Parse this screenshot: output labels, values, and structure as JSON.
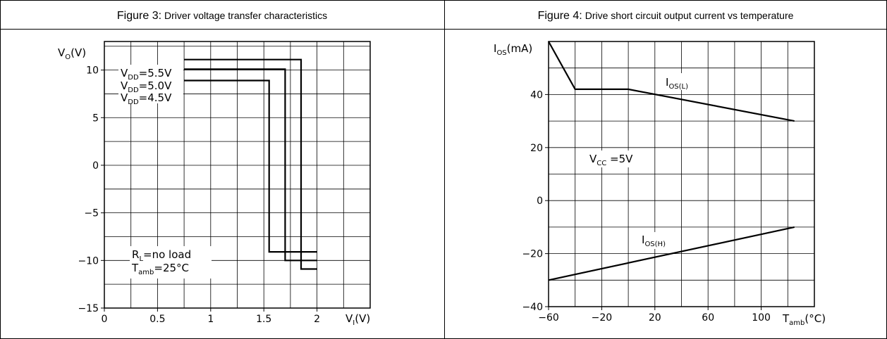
{
  "charts": [
    {
      "title_prefix": "Figure 3:",
      "title_rest": "Driver voltage transfer characteristics",
      "y_axis": {
        "main": "V",
        "sub": "O",
        "unit": "(V)"
      },
      "x_axis": {
        "main": "V",
        "sub": "I",
        "unit": "(V)"
      },
      "x_ticks": [
        "0",
        "0.5",
        "1",
        "1.5",
        "2"
      ],
      "y_ticks": [
        "10",
        "5",
        "0",
        "−5",
        "−10",
        "−15"
      ],
      "curve_labels": [
        {
          "main": "V",
          "sub": "DD",
          "rest": "=5.5V"
        },
        {
          "main": "V",
          "sub": "DD",
          "rest": "=5.0V"
        },
        {
          "main": "V",
          "sub": "DD",
          "rest": "=4.5V"
        }
      ],
      "note_1": {
        "main": "R",
        "sub": "L",
        "rest": "=no  load"
      },
      "note_2": {
        "main": "T",
        "sub": "amb",
        "rest": "=25°C"
      }
    },
    {
      "title_prefix": "Figure 4:",
      "title_rest": "Drive short circuit output current vs temperature",
      "y_axis": {
        "main": "I",
        "sub": "OS",
        "unit": "(mA)"
      },
      "x_axis": {
        "main": "T",
        "sub": "amb",
        "unit": "(°C)"
      },
      "x_ticks": [
        "−60",
        "−20",
        "20",
        "60",
        "100"
      ],
      "y_ticks": [
        "40",
        "20",
        "0",
        "−20",
        "−40"
      ],
      "curve_labels": [
        {
          "main": "I",
          "sub": "OS(L)",
          "rest": ""
        },
        {
          "main": "I",
          "sub": "OS(H)",
          "rest": ""
        }
      ],
      "note_1": {
        "main": "V",
        "sub": "CC",
        "rest": " =5V"
      }
    }
  ],
  "chart_data": [
    {
      "type": "line",
      "title": "Driver voltage transfer characteristics",
      "xlabel": "VI(V)",
      "ylabel": "VO(V)",
      "xlim": [
        0,
        2.5
      ],
      "ylim": [
        -15,
        13
      ],
      "x_ticks": [
        0,
        0.5,
        1,
        1.5,
        2
      ],
      "y_ticks": [
        -15,
        -10,
        -5,
        0,
        5,
        10
      ],
      "grid": true,
      "series": [
        {
          "name": "VDD=5.5V",
          "x": [
            0.75,
            1.85,
            1.85,
            2.0
          ],
          "y": [
            11.1,
            11.1,
            -10.9,
            -10.9
          ]
        },
        {
          "name": "VDD=5.0V",
          "x": [
            0.75,
            1.7,
            1.7,
            2.0
          ],
          "y": [
            10.1,
            10.1,
            -10.0,
            -10.0
          ]
        },
        {
          "name": "VDD=4.5V",
          "x": [
            0.75,
            1.55,
            1.55,
            2.0
          ],
          "y": [
            8.9,
            8.9,
            -9.1,
            -9.1
          ]
        }
      ],
      "annotations": [
        "RL=no load",
        "Tamb=25°C"
      ]
    },
    {
      "type": "line",
      "title": "Drive short circuit output current vs temperature",
      "xlabel": "Tamb(°C)",
      "ylabel": "IOS(mA)",
      "xlim": [
        -60,
        140
      ],
      "ylim": [
        -40,
        60
      ],
      "x_ticks": [
        -60,
        -20,
        20,
        60,
        100
      ],
      "y_ticks": [
        -40,
        -20,
        0,
        20,
        40
      ],
      "grid": true,
      "series": [
        {
          "name": "IOS(L)",
          "x": [
            -60,
            -40,
            0,
            125
          ],
          "y": [
            60,
            42,
            42,
            30
          ]
        },
        {
          "name": "IOS(H)",
          "x": [
            -60,
            125
          ],
          "y": [
            -30,
            -10
          ]
        }
      ],
      "annotations": [
        "VCC =5V"
      ]
    }
  ]
}
